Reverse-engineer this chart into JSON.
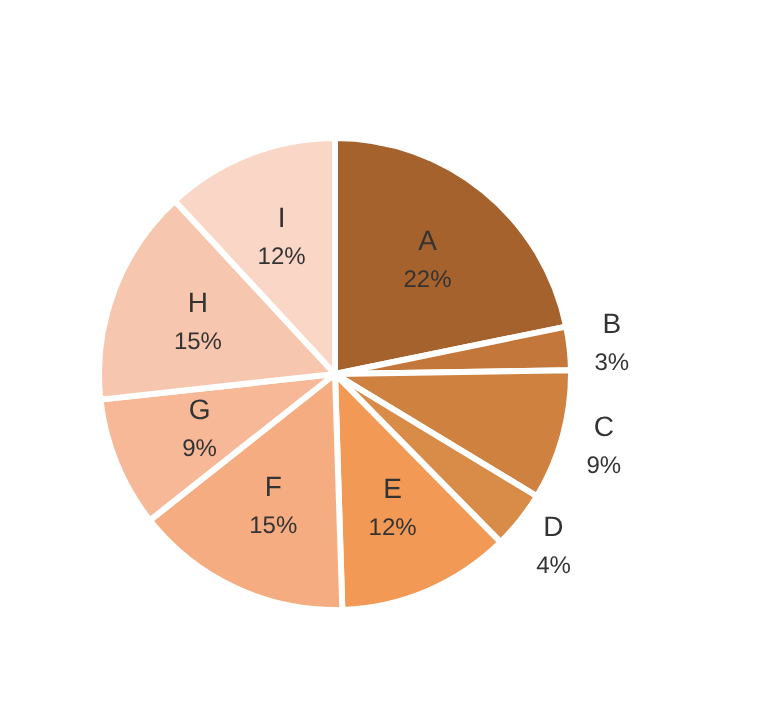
{
  "chart_data": {
    "type": "pie",
    "categories": [
      "A",
      "B",
      "C",
      "D",
      "E",
      "F",
      "G",
      "H",
      "I"
    ],
    "values": [
      22,
      3,
      9,
      4,
      12,
      15,
      9,
      15,
      12
    ],
    "value_labels": [
      "22%",
      "3%",
      "9%",
      "4%",
      "12%",
      "15%",
      "9%",
      "15%",
      "12%"
    ],
    "colors": [
      "#a6622c",
      "#c4773a",
      "#cf8140",
      "#d98b48",
      "#f29a55",
      "#f5ac80",
      "#f6b896",
      "#f7c6ae",
      "#fad6c6"
    ],
    "legend": false
  }
}
